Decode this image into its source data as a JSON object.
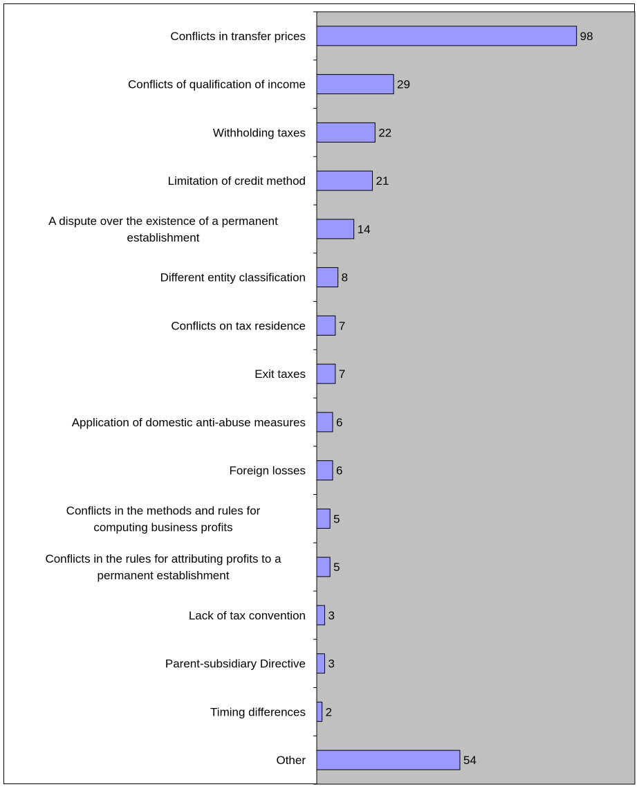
{
  "chart_data": {
    "type": "bar",
    "orientation": "horizontal",
    "categories": [
      [
        "Conflicts in transfer prices"
      ],
      [
        "Conflicts of qualification of income"
      ],
      [
        "Withholding taxes"
      ],
      [
        "Limitation of credit method"
      ],
      [
        "A dispute over the existence of a permanent",
        "establishment"
      ],
      [
        "Different entity classification"
      ],
      [
        "Conflicts on tax residence"
      ],
      [
        "Exit taxes"
      ],
      [
        "Application of domestic anti-abuse measures"
      ],
      [
        "Foreign losses"
      ],
      [
        "Conflicts in the methods and rules for",
        "computing business profits"
      ],
      [
        "Conflicts in the rules for attributing profits to a",
        "permanent establishment"
      ],
      [
        "Lack of tax convention"
      ],
      [
        "Parent-subsidiary Directive"
      ],
      [
        "Timing differences"
      ],
      [
        "Other"
      ]
    ],
    "values": [
      98,
      29,
      22,
      21,
      14,
      8,
      7,
      7,
      6,
      6,
      5,
      5,
      3,
      3,
      2,
      54
    ],
    "xlim": [
      0,
      120
    ],
    "grid": false,
    "legend": "none",
    "data_labels": true,
    "colors": {
      "bar_fill": "#9999ff",
      "bar_stroke": "#000000",
      "plot_background": "#c0c0c0"
    }
  }
}
